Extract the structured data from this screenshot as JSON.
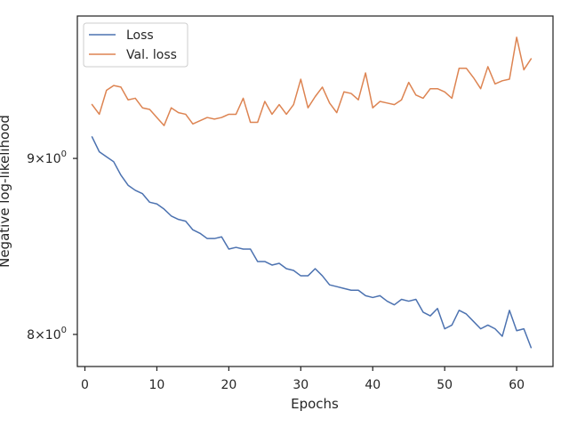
{
  "chart_data": {
    "type": "line",
    "xlabel": "Epochs",
    "ylabel": "Negative log-likelihood",
    "yscale": "log",
    "xlim": [
      -1.05,
      65.05
    ],
    "ylim": [
      7.83,
      9.9
    ],
    "xticks": [
      {
        "value": 0,
        "label": "0"
      },
      {
        "value": 10,
        "label": "10"
      },
      {
        "value": 20,
        "label": "20"
      },
      {
        "value": 30,
        "label": "30"
      },
      {
        "value": 40,
        "label": "40"
      },
      {
        "value": 50,
        "label": "50"
      },
      {
        "value": 60,
        "label": "60"
      }
    ],
    "yticks": [
      {
        "value": 8,
        "base": "8",
        "exp": "0"
      },
      {
        "value": 9,
        "base": "9",
        "exp": "0"
      }
    ],
    "legend_position": "top-left",
    "grid": false,
    "x": [
      1,
      2,
      3,
      4,
      5,
      6,
      7,
      8,
      9,
      10,
      11,
      12,
      13,
      14,
      15,
      16,
      17,
      18,
      19,
      20,
      21,
      22,
      23,
      24,
      25,
      26,
      27,
      28,
      29,
      30,
      31,
      32,
      33,
      34,
      35,
      36,
      37,
      38,
      39,
      40,
      41,
      42,
      43,
      44,
      45,
      46,
      47,
      48,
      49,
      50,
      51,
      52,
      53,
      54,
      55,
      56,
      57,
      58,
      59,
      60,
      61,
      62
    ],
    "series": [
      {
        "name": "Loss",
        "color": "#4c72b0",
        "values": [
          9.13,
          9.04,
          9.01,
          8.98,
          8.9,
          8.84,
          8.81,
          8.79,
          8.74,
          8.73,
          8.7,
          8.66,
          8.64,
          8.63,
          8.58,
          8.56,
          8.53,
          8.53,
          8.54,
          8.47,
          8.48,
          8.47,
          8.47,
          8.4,
          8.4,
          8.38,
          8.39,
          8.36,
          8.35,
          8.32,
          8.32,
          8.36,
          8.32,
          8.27,
          8.26,
          8.25,
          8.24,
          8.24,
          8.21,
          8.2,
          8.21,
          8.18,
          8.16,
          8.19,
          8.18,
          8.19,
          8.12,
          8.1,
          8.14,
          8.03,
          8.05,
          8.13,
          8.11,
          8.07,
          8.03,
          8.05,
          8.03,
          7.99,
          8.13,
          8.02,
          8.03,
          7.93
        ]
      },
      {
        "name": "Val. loss",
        "color": "#dd8452",
        "values": [
          9.33,
          9.27,
          9.42,
          9.45,
          9.44,
          9.36,
          9.37,
          9.31,
          9.3,
          9.25,
          9.2,
          9.31,
          9.28,
          9.27,
          9.21,
          9.23,
          9.25,
          9.24,
          9.25,
          9.27,
          9.27,
          9.37,
          9.22,
          9.22,
          9.35,
          9.27,
          9.33,
          9.27,
          9.33,
          9.49,
          9.31,
          9.38,
          9.44,
          9.34,
          9.28,
          9.41,
          9.4,
          9.36,
          9.53,
          9.31,
          9.35,
          9.34,
          9.33,
          9.36,
          9.47,
          9.39,
          9.37,
          9.43,
          9.43,
          9.41,
          9.37,
          9.56,
          9.56,
          9.5,
          9.43,
          9.57,
          9.46,
          9.48,
          9.49,
          9.76,
          9.55,
          9.62
        ]
      }
    ]
  }
}
